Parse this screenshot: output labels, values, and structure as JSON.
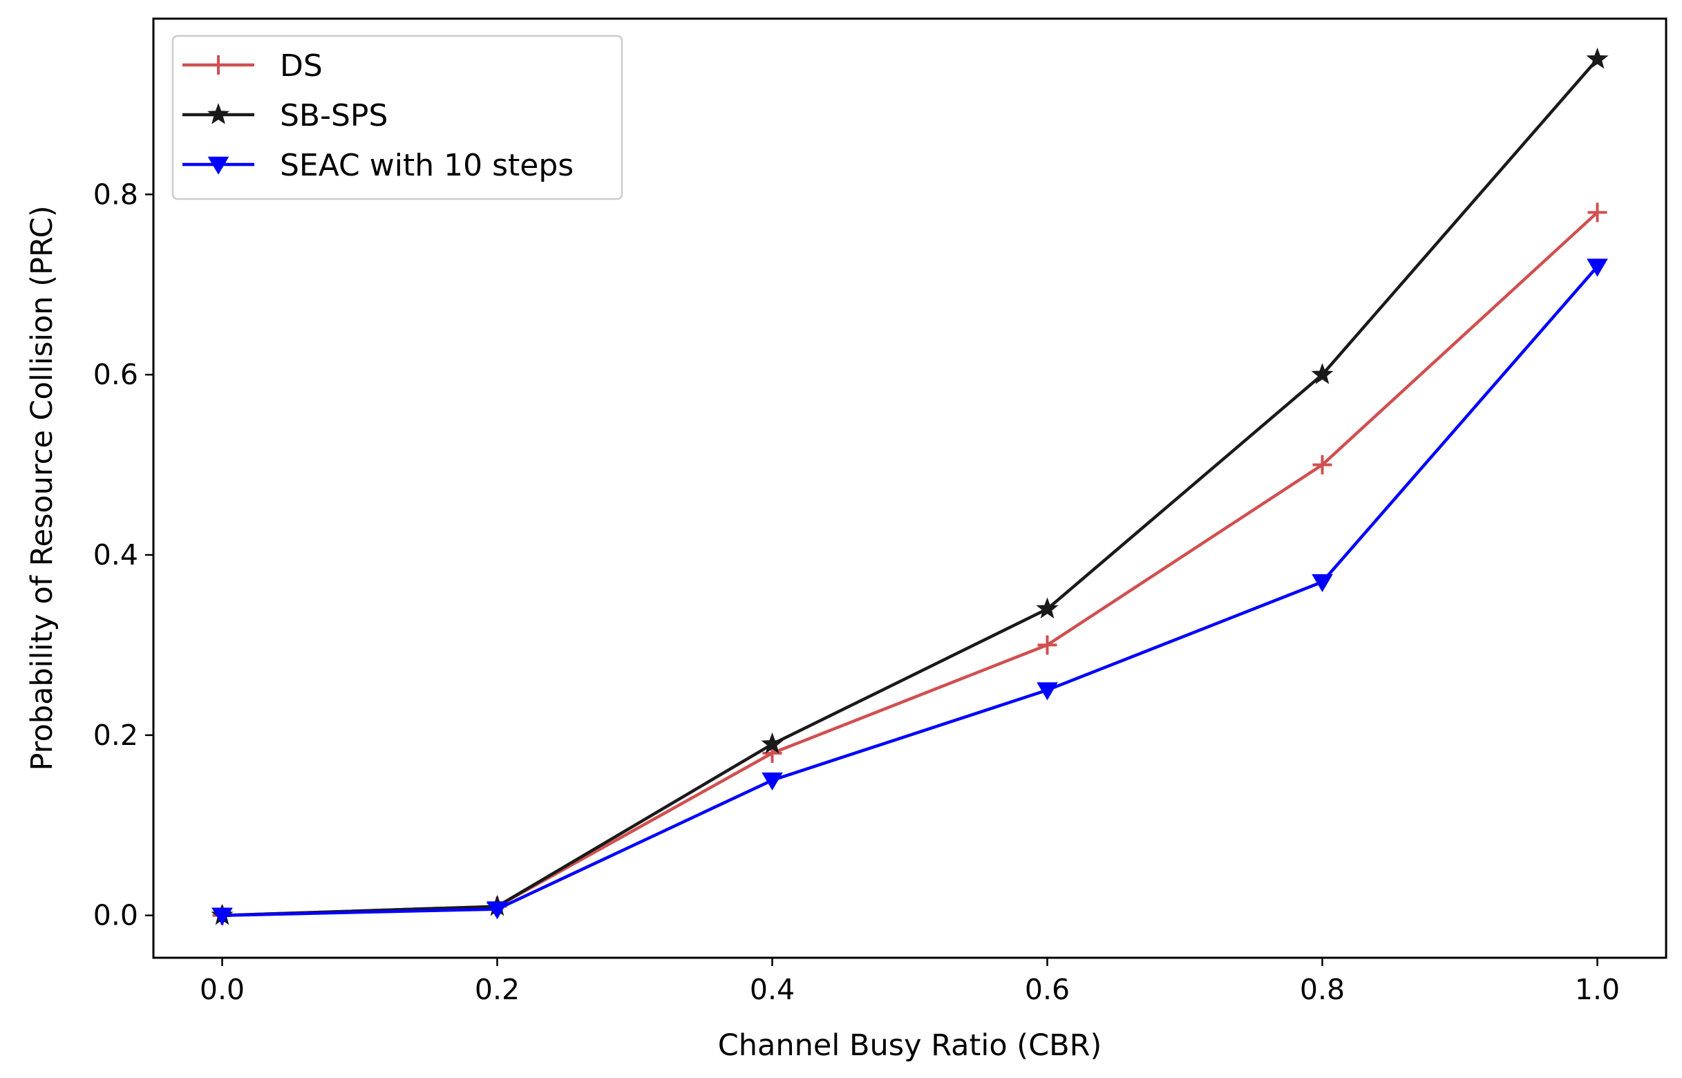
{
  "chart_data": {
    "type": "line",
    "title": "",
    "xlabel": "Channel Busy Ratio (CBR)",
    "ylabel": "Probability of Resource Collision (PRC)",
    "x": [
      0.0,
      0.2,
      0.4,
      0.6,
      0.8,
      1.0
    ],
    "xlim": [
      -0.05,
      1.05
    ],
    "ylim": [
      -0.047,
      0.995
    ],
    "xticks": [
      "0.0",
      "0.2",
      "0.4",
      "0.6",
      "0.8",
      "1.0"
    ],
    "yticks": [
      "0.0",
      "0.2",
      "0.4",
      "0.6",
      "0.8"
    ],
    "grid": false,
    "legend_position": "top-left",
    "series": [
      {
        "name": "DS",
        "color": "#d05050",
        "marker": "plus",
        "values": [
          0.0,
          0.01,
          0.18,
          0.3,
          0.5,
          0.78
        ]
      },
      {
        "name": "SB-SPS",
        "color": "#1a1a1a",
        "marker": "star",
        "values": [
          0.0,
          0.01,
          0.19,
          0.34,
          0.6,
          0.95
        ]
      },
      {
        "name": "SEAC with 10 steps",
        "color": "#0000ff",
        "marker": "triangle-down",
        "values": [
          0.0,
          0.007,
          0.15,
          0.25,
          0.37,
          0.72
        ]
      }
    ]
  }
}
